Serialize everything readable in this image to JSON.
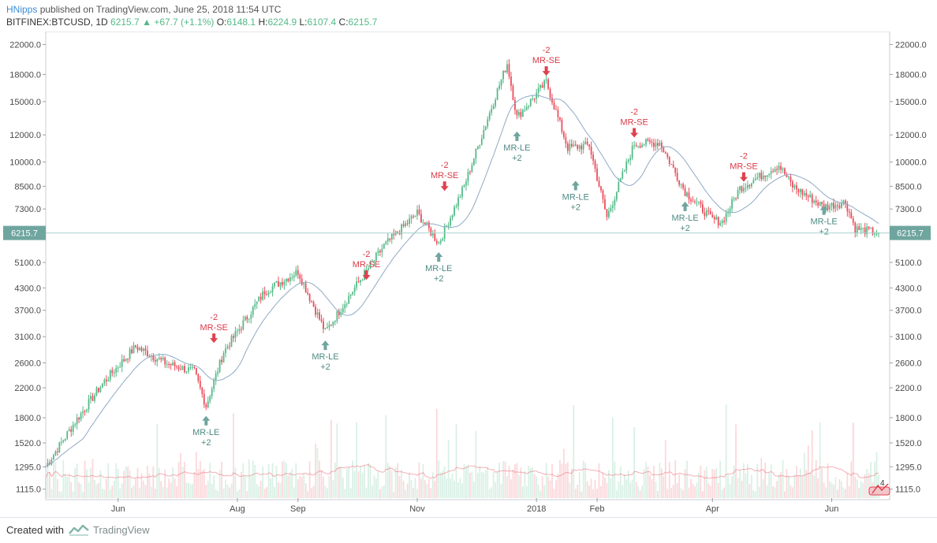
{
  "header": {
    "user": "HNipps",
    "published": "published on TradingView.com, June 25, 2018 11:54 UTC",
    "symbol": "BITFINEX:BTCUSD, 1D",
    "last": "6215.7",
    "arrow": "▲",
    "change": "+67.7 (+1.1%)",
    "o_label": "O:",
    "o": "6148.1",
    "h_label": "H:",
    "h": "6224.9",
    "l_label": "L:",
    "l": "6107.4",
    "c_label": "C:",
    "c": "6215.7"
  },
  "footer": {
    "created": "Created with",
    "brand": "TradingView"
  },
  "colors": {
    "up": "#53b987",
    "down": "#eb4d5c",
    "ma": "#8fa9c4",
    "price_line": "#a6d3cf",
    "price_label": "#6fa59f"
  },
  "chart_data": {
    "type": "candlestick",
    "scale": "log",
    "ylim": [
      1050,
      23500
    ],
    "y_ticks": [
      "22000.0",
      "18000.0",
      "15000.0",
      "12000.0",
      "10000.0",
      "8500.0",
      "7300.0",
      "5100.0",
      "4300.0",
      "3700.0",
      "3100.0",
      "2600.0",
      "2200.0",
      "1800.0",
      "1520.0",
      "1295.0",
      "1115.0"
    ],
    "y_tick_values": [
      22000,
      18000,
      15000,
      12000,
      10000,
      8500,
      7300,
      5100,
      4300,
      3700,
      3100,
      2600,
      2200,
      1800,
      1520,
      1295,
      1115
    ],
    "x_ticks": [
      {
        "label": "Jun",
        "date": "2017-06-01"
      },
      {
        "label": "Aug",
        "date": "2017-08-01"
      },
      {
        "label": "Sep",
        "date": "2017-09-01"
      },
      {
        "label": "Nov",
        "date": "2017-11-01"
      },
      {
        "label": "2018",
        "date": "2018-01-01"
      },
      {
        "label": "Feb",
        "date": "2018-02-01"
      },
      {
        "label": "Apr",
        "date": "2018-04-01"
      },
      {
        "label": "Jun",
        "date": "2018-06-01"
      }
    ],
    "x_range": [
      "2017-04-25",
      "2018-06-25"
    ],
    "last_price": "6215.7",
    "last_price_value": 6215.7,
    "price_path": [
      [
        "2017-04-25",
        1300
      ],
      [
        "2017-05-10",
        1750
      ],
      [
        "2017-05-25",
        2300
      ],
      [
        "2017-06-10",
        2900
      ],
      [
        "2017-06-25",
        2600
      ],
      [
        "2017-07-10",
        2450
      ],
      [
        "2017-07-16",
        1950
      ],
      [
        "2017-07-25",
        2800
      ],
      [
        "2017-08-15",
        4200
      ],
      [
        "2017-09-01",
        4800
      ],
      [
        "2017-09-15",
        3200
      ],
      [
        "2017-09-30",
        4300
      ],
      [
        "2017-10-15",
        5700
      ],
      [
        "2017-11-01",
        7100
      ],
      [
        "2017-11-12",
        5800
      ],
      [
        "2017-11-25",
        8500
      ],
      [
        "2017-12-10",
        15000
      ],
      [
        "2017-12-17",
        19400
      ],
      [
        "2017-12-22",
        13500
      ],
      [
        "2018-01-06",
        17100
      ],
      [
        "2018-01-17",
        11000
      ],
      [
        "2018-01-28",
        11200
      ],
      [
        "2018-02-06",
        6900
      ],
      [
        "2018-02-20",
        11300
      ],
      [
        "2018-03-05",
        11400
      ],
      [
        "2018-03-18",
        8200
      ],
      [
        "2018-04-01",
        6800
      ],
      [
        "2018-04-06",
        6700
      ],
      [
        "2018-04-15",
        8400
      ],
      [
        "2018-05-05",
        9800
      ],
      [
        "2018-05-12",
        8500
      ],
      [
        "2018-05-28",
        7400
      ],
      [
        "2018-06-08",
        7650
      ],
      [
        "2018-06-13",
        6400
      ],
      [
        "2018-06-25",
        6215.7
      ]
    ],
    "signals": [
      {
        "type": "long",
        "label": "MR-LE",
        "qty": "+2",
        "date": "2017-07-16",
        "price": 1900
      },
      {
        "type": "short",
        "label": "MR-SE",
        "qty": "-2",
        "date": "2017-07-20",
        "price": 2850
      },
      {
        "type": "long",
        "label": "MR-LE",
        "qty": "+2",
        "date": "2017-09-15",
        "price": 3150
      },
      {
        "type": "short",
        "label": "MR-SE",
        "qty": "-2",
        "date": "2017-10-06",
        "price": 4350
      },
      {
        "type": "long",
        "label": "MR-LE",
        "qty": "+2",
        "date": "2017-11-12",
        "price": 5700
      },
      {
        "type": "short",
        "label": "MR-SE",
        "qty": "-2",
        "date": "2017-11-15",
        "price": 7900
      },
      {
        "type": "long",
        "label": "MR-LE",
        "qty": "+2",
        "date": "2017-12-22",
        "price": 12800
      },
      {
        "type": "short",
        "label": "MR-SE",
        "qty": "-2",
        "date": "2018-01-06",
        "price": 17100
      },
      {
        "type": "long",
        "label": "MR-LE",
        "qty": "+2",
        "date": "2018-01-21",
        "price": 9200
      },
      {
        "type": "short",
        "label": "MR-SE",
        "qty": "-2",
        "date": "2018-02-20",
        "price": 11300
      },
      {
        "type": "long",
        "label": "MR-LE",
        "qty": "+2",
        "date": "2018-03-18",
        "price": 8000
      },
      {
        "type": "short",
        "label": "MR-SE",
        "qty": "-2",
        "date": "2018-04-17",
        "price": 8400
      },
      {
        "type": "long",
        "label": "MR-LE",
        "qty": "+2",
        "date": "2018-05-28",
        "price": 7800
      }
    ],
    "volume_indicator": {
      "badge_count": "4"
    }
  }
}
